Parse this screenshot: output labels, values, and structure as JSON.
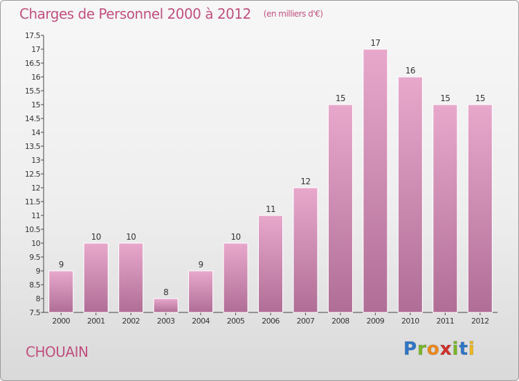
{
  "header": {
    "title": "Charges de Personnel 2000 à 2012",
    "unit": "(en milliers d'€)"
  },
  "footer": {
    "place": "CHOUAIN",
    "logo": "Proxiti",
    "logo_colors": [
      "#2f76c7",
      "#7ab828",
      "#f08a1c",
      "#d3302a",
      "#7ab828",
      "#2f76c7",
      "#f0b81c"
    ]
  },
  "colors": {
    "title": "#c0507f",
    "bar_light": "#e8a8cc",
    "bar_dark": "#b06e96"
  },
  "chart_data": {
    "type": "bar",
    "title": "Charges de Personnel 2000 à 2012",
    "subtitle": "(en milliers d'€)",
    "xlabel": "",
    "ylabel": "",
    "categories": [
      "2000",
      "2001",
      "2002",
      "2003",
      "2004",
      "2005",
      "2006",
      "2007",
      "2008",
      "2009",
      "2010",
      "2011",
      "2012"
    ],
    "values": [
      9,
      10,
      10,
      8,
      9,
      10,
      11,
      12,
      15,
      17,
      16,
      15,
      15
    ],
    "ylim": [
      7.5,
      17.5
    ],
    "yticks": [
      "7.5",
      "8",
      "8.5",
      "9",
      "9.5",
      "10",
      "10.5",
      "11",
      "11.5",
      "12",
      "12.5",
      "13",
      "13.5",
      "14",
      "14.5",
      "15",
      "15.5",
      "16",
      "16.5",
      "17",
      "17.5"
    ],
    "grid": false,
    "legend": "none"
  }
}
